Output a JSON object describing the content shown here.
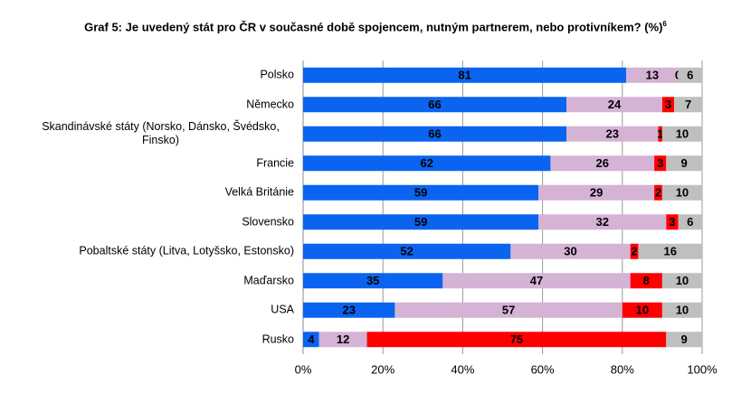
{
  "chart_data": {
    "type": "stacked-bar-horizontal",
    "title": "Graf 5: Je uvedený stát pro ČR v současné době spojencem, nutným partnerem, nebo protivníkem? (%)",
    "title_footnote": "6",
    "categories": [
      "Polsko",
      "Německo",
      "Skandinávské státy (Norsko, Dánsko, Švédsko, Finsko)",
      "Francie",
      "Velká Británie",
      "Slovensko",
      "Pobaltské státy (Litva, Lotyšsko, Estonsko)",
      "Maďarsko",
      "USA",
      "Rusko"
    ],
    "series": [
      {
        "color": "#0a64f0",
        "values": [
          81,
          66,
          66,
          62,
          59,
          59,
          52,
          35,
          23,
          4
        ]
      },
      {
        "color": "#d5b3d5",
        "values": [
          13,
          24,
          23,
          26,
          29,
          32,
          30,
          47,
          57,
          12
        ]
      },
      {
        "color": "#ff0000",
        "values": [
          0,
          3,
          1,
          3,
          2,
          3,
          2,
          8,
          10,
          75
        ]
      },
      {
        "color": "#bfbfbf",
        "values": [
          6,
          7,
          10,
          9,
          10,
          6,
          16,
          10,
          10,
          9
        ]
      }
    ],
    "xlim": [
      0,
      100
    ],
    "xticks": [
      {
        "value": 0,
        "label": "0%"
      },
      {
        "value": 20,
        "label": "20%"
      },
      {
        "value": 40,
        "label": "40%"
      },
      {
        "value": 60,
        "label": "60%"
      },
      {
        "value": 80,
        "label": "80%"
      },
      {
        "value": 100,
        "label": "100%"
      }
    ],
    "grid": true
  }
}
